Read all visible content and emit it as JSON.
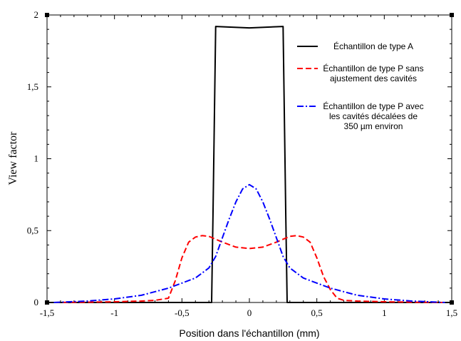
{
  "chart_data": {
    "type": "line",
    "xlabel": "Position dans l'échantillon (mm)",
    "ylabel": "View factor",
    "xlim": [
      -1.5,
      1.5
    ],
    "ylim": [
      0,
      2
    ],
    "x_ticks": [
      -1.5,
      -1,
      -0.5,
      0,
      0.5,
      1,
      1.5
    ],
    "x_tick_labels": [
      "-1,5",
      "-1",
      "-0,5",
      "0",
      "0,5",
      "1",
      "1,5"
    ],
    "y_ticks": [
      0,
      0.5,
      1,
      1.5,
      2
    ],
    "y_tick_labels": [
      "0",
      "0,5",
      "1",
      "1,5",
      "2"
    ],
    "grid": false,
    "legend_position": "right",
    "series": [
      {
        "name": "Échantillon de type A",
        "color": "#000000",
        "dash": "solid",
        "x": [
          -1.5,
          -0.28,
          -0.27,
          -0.25,
          0,
          0.25,
          0.27,
          0.28,
          1.5
        ],
        "y": [
          0,
          0,
          0.6,
          1.92,
          1.91,
          1.92,
          0.6,
          0,
          0
        ]
      },
      {
        "name": "Échantillon de type P sans ajustement des cavités",
        "color": "#ff0000",
        "dash": "dashed",
        "x": [
          -1.45,
          -1.2,
          -1.0,
          -0.8,
          -0.7,
          -0.6,
          -0.55,
          -0.5,
          -0.45,
          -0.4,
          -0.35,
          -0.3,
          -0.2,
          -0.1,
          0,
          0.1,
          0.2,
          0.3,
          0.35,
          0.4,
          0.45,
          0.5,
          0.55,
          0.6,
          0.65,
          0.7,
          0.8,
          1.0,
          1.2,
          1.45
        ],
        "y": [
          0.0,
          0.002,
          0.005,
          0.01,
          0.015,
          0.03,
          0.15,
          0.31,
          0.42,
          0.455,
          0.465,
          0.46,
          0.42,
          0.385,
          0.375,
          0.385,
          0.42,
          0.46,
          0.465,
          0.455,
          0.42,
          0.31,
          0.18,
          0.09,
          0.03,
          0.015,
          0.01,
          0.005,
          0.002,
          0.0
        ]
      },
      {
        "name": "Échantillon de type P avec les cavités décalées de 350 µm environ",
        "color": "#0000ff",
        "dash": "dash-dot",
        "x": [
          -1.45,
          -1.2,
          -1.0,
          -0.8,
          -0.6,
          -0.4,
          -0.3,
          -0.25,
          -0.2,
          -0.15,
          -0.1,
          -0.05,
          0,
          0.05,
          0.1,
          0.15,
          0.2,
          0.25,
          0.3,
          0.4,
          0.6,
          0.8,
          1.0,
          1.2,
          1.45
        ],
        "y": [
          0.0,
          0.01,
          0.025,
          0.05,
          0.1,
          0.17,
          0.24,
          0.32,
          0.45,
          0.58,
          0.7,
          0.79,
          0.82,
          0.79,
          0.7,
          0.58,
          0.45,
          0.32,
          0.24,
          0.17,
          0.1,
          0.05,
          0.025,
          0.01,
          0.0
        ]
      }
    ],
    "legend_lines": [
      [
        "Échantillon de type A"
      ],
      [
        "Échantillon de type P sans",
        "ajustement des cavités"
      ],
      [
        "Échantillon de type P avec",
        "les cavités décalées de",
        "350 µm environ"
      ]
    ]
  }
}
